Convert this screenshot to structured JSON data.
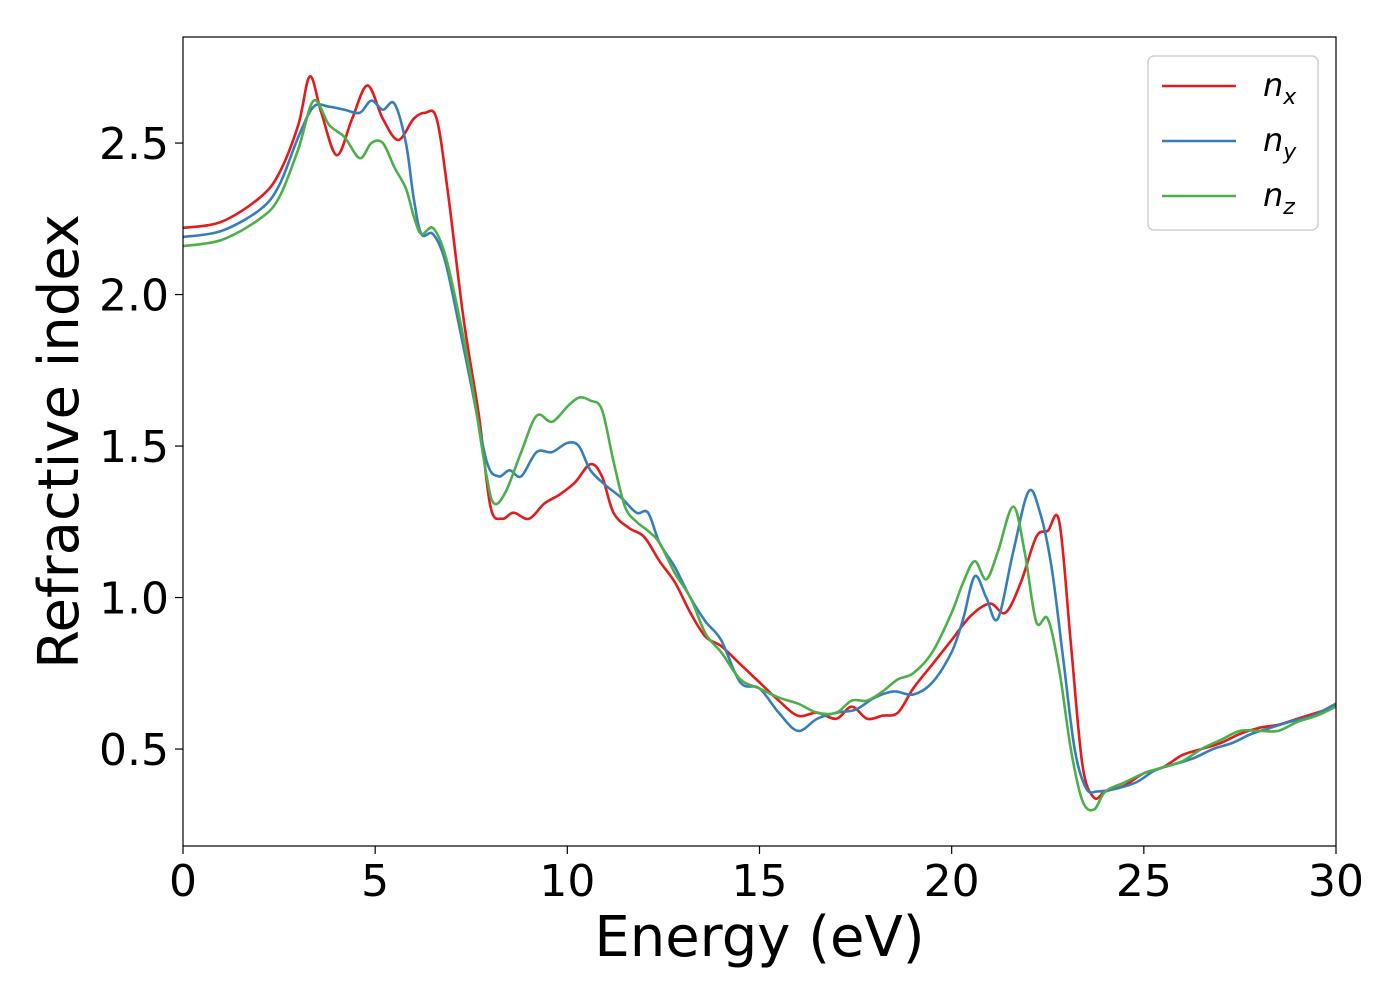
{
  "chart_data": {
    "type": "line",
    "xlabel": "Energy (eV)",
    "ylabel": "Refractive index",
    "xlim": [
      0,
      30
    ],
    "ylim": [
      0.18,
      2.85
    ],
    "xticks": [
      0,
      5,
      10,
      15,
      20,
      25,
      30
    ],
    "xtick_labels": [
      "0",
      "5",
      "10",
      "15",
      "20",
      "25",
      "30"
    ],
    "yticks": [
      0.5,
      1.0,
      1.5,
      2.0,
      2.5
    ],
    "ytick_labels": [
      "0.5",
      "1.0",
      "1.5",
      "2.0",
      "2.5"
    ],
    "grid": false,
    "legend_position": "top-right",
    "series": [
      {
        "name": "n",
        "sub": "x",
        "color": "#e41a1c",
        "x": [
          0,
          1,
          2,
          2.5,
          3,
          3.3,
          3.6,
          4.0,
          4.4,
          4.8,
          5.2,
          5.6,
          6.0,
          6.3,
          6.6,
          6.9,
          7.3,
          7.7,
          8.0,
          8.3,
          8.6,
          9.0,
          9.4,
          9.8,
          10.2,
          10.6,
          10.9,
          11.2,
          11.6,
          12.0,
          12.4,
          12.8,
          13.2,
          13.6,
          14.0,
          14.5,
          15.0,
          15.5,
          16.0,
          16.5,
          17.0,
          17.4,
          17.8,
          18.2,
          18.6,
          19.0,
          19.5,
          20.0,
          20.5,
          21.0,
          21.4,
          21.8,
          22.2,
          22.5,
          22.8,
          23.1,
          23.4,
          23.7,
          24.0,
          24.5,
          25.0,
          25.5,
          26.0,
          26.5,
          27.0,
          27.5,
          28.0,
          28.5,
          29.0,
          29.5,
          30.0
        ],
        "values": [
          2.22,
          2.24,
          2.32,
          2.4,
          2.56,
          2.72,
          2.6,
          2.46,
          2.58,
          2.69,
          2.58,
          2.51,
          2.58,
          2.6,
          2.58,
          2.33,
          1.92,
          1.6,
          1.3,
          1.26,
          1.28,
          1.26,
          1.31,
          1.34,
          1.38,
          1.44,
          1.4,
          1.28,
          1.23,
          1.2,
          1.12,
          1.05,
          0.95,
          0.87,
          0.84,
          0.78,
          0.72,
          0.66,
          0.61,
          0.62,
          0.6,
          0.64,
          0.6,
          0.61,
          0.62,
          0.7,
          0.78,
          0.86,
          0.94,
          0.98,
          0.95,
          1.05,
          1.2,
          1.22,
          1.25,
          0.85,
          0.45,
          0.34,
          0.36,
          0.38,
          0.42,
          0.44,
          0.48,
          0.5,
          0.52,
          0.55,
          0.57,
          0.58,
          0.6,
          0.62,
          0.64
        ]
      },
      {
        "name": "n",
        "sub": "y",
        "color": "#377eb8",
        "x": [
          0,
          1,
          2,
          2.5,
          3,
          3.4,
          3.8,
          4.2,
          4.6,
          4.9,
          5.2,
          5.5,
          5.8,
          6.0,
          6.2,
          6.5,
          6.8,
          7.1,
          7.5,
          7.9,
          8.2,
          8.5,
          8.8,
          9.2,
          9.6,
          10.0,
          10.3,
          10.6,
          11.0,
          11.4,
          11.8,
          12.1,
          12.4,
          12.8,
          13.2,
          13.6,
          14.0,
          14.5,
          15.0,
          15.5,
          16.0,
          16.5,
          17.0,
          17.5,
          18.0,
          18.5,
          19.0,
          19.5,
          20.0,
          20.3,
          20.6,
          20.9,
          21.2,
          21.6,
          22.0,
          22.3,
          22.6,
          22.9,
          23.2,
          23.5,
          23.8,
          24.3,
          24.8,
          25.3,
          25.8,
          26.3,
          26.8,
          27.3,
          27.8,
          28.3,
          28.8,
          29.4,
          30.0
        ],
        "values": [
          2.19,
          2.21,
          2.28,
          2.36,
          2.52,
          2.62,
          2.62,
          2.61,
          2.6,
          2.64,
          2.61,
          2.63,
          2.5,
          2.32,
          2.2,
          2.2,
          2.12,
          1.95,
          1.7,
          1.45,
          1.4,
          1.42,
          1.4,
          1.48,
          1.48,
          1.51,
          1.5,
          1.42,
          1.37,
          1.33,
          1.28,
          1.28,
          1.18,
          1.1,
          1.0,
          0.92,
          0.86,
          0.72,
          0.7,
          0.62,
          0.56,
          0.6,
          0.62,
          0.63,
          0.67,
          0.69,
          0.68,
          0.72,
          0.82,
          0.93,
          1.07,
          1.0,
          0.93,
          1.15,
          1.35,
          1.28,
          1.1,
          0.8,
          0.5,
          0.37,
          0.36,
          0.37,
          0.39,
          0.43,
          0.45,
          0.47,
          0.5,
          0.52,
          0.55,
          0.57,
          0.59,
          0.61,
          0.65
        ]
      },
      {
        "name": "n",
        "sub": "z",
        "color": "#4daf4a",
        "x": [
          0,
          1,
          2,
          2.5,
          3,
          3.4,
          3.8,
          4.2,
          4.6,
          4.9,
          5.2,
          5.5,
          5.8,
          6.0,
          6.2,
          6.5,
          6.8,
          7.1,
          7.5,
          7.9,
          8.1,
          8.4,
          8.8,
          9.2,
          9.6,
          10.0,
          10.3,
          10.6,
          10.9,
          11.2,
          11.5,
          11.8,
          12.1,
          12.4,
          12.8,
          13.2,
          13.6,
          14.0,
          14.5,
          15.0,
          15.5,
          16.0,
          16.5,
          17.0,
          17.4,
          17.8,
          18.2,
          18.6,
          19.0,
          19.5,
          20.0,
          20.3,
          20.6,
          20.9,
          21.2,
          21.6,
          21.9,
          22.2,
          22.5,
          22.8,
          23.1,
          23.4,
          23.7,
          24.0,
          24.5,
          25.0,
          25.5,
          26.0,
          26.5,
          27.0,
          27.5,
          28.0,
          28.5,
          29.0,
          29.5,
          30.0
        ],
        "values": [
          2.16,
          2.18,
          2.25,
          2.32,
          2.48,
          2.64,
          2.56,
          2.52,
          2.45,
          2.5,
          2.5,
          2.42,
          2.35,
          2.26,
          2.2,
          2.22,
          2.14,
          1.98,
          1.72,
          1.4,
          1.31,
          1.35,
          1.48,
          1.6,
          1.58,
          1.63,
          1.66,
          1.65,
          1.62,
          1.45,
          1.3,
          1.25,
          1.22,
          1.18,
          1.08,
          1.0,
          0.88,
          0.82,
          0.73,
          0.7,
          0.67,
          0.65,
          0.62,
          0.62,
          0.66,
          0.66,
          0.69,
          0.73,
          0.75,
          0.82,
          0.95,
          1.05,
          1.12,
          1.06,
          1.15,
          1.3,
          1.15,
          0.92,
          0.93,
          0.76,
          0.5,
          0.33,
          0.3,
          0.36,
          0.39,
          0.42,
          0.44,
          0.46,
          0.5,
          0.53,
          0.56,
          0.56,
          0.56,
          0.59,
          0.61,
          0.64
        ]
      }
    ]
  }
}
